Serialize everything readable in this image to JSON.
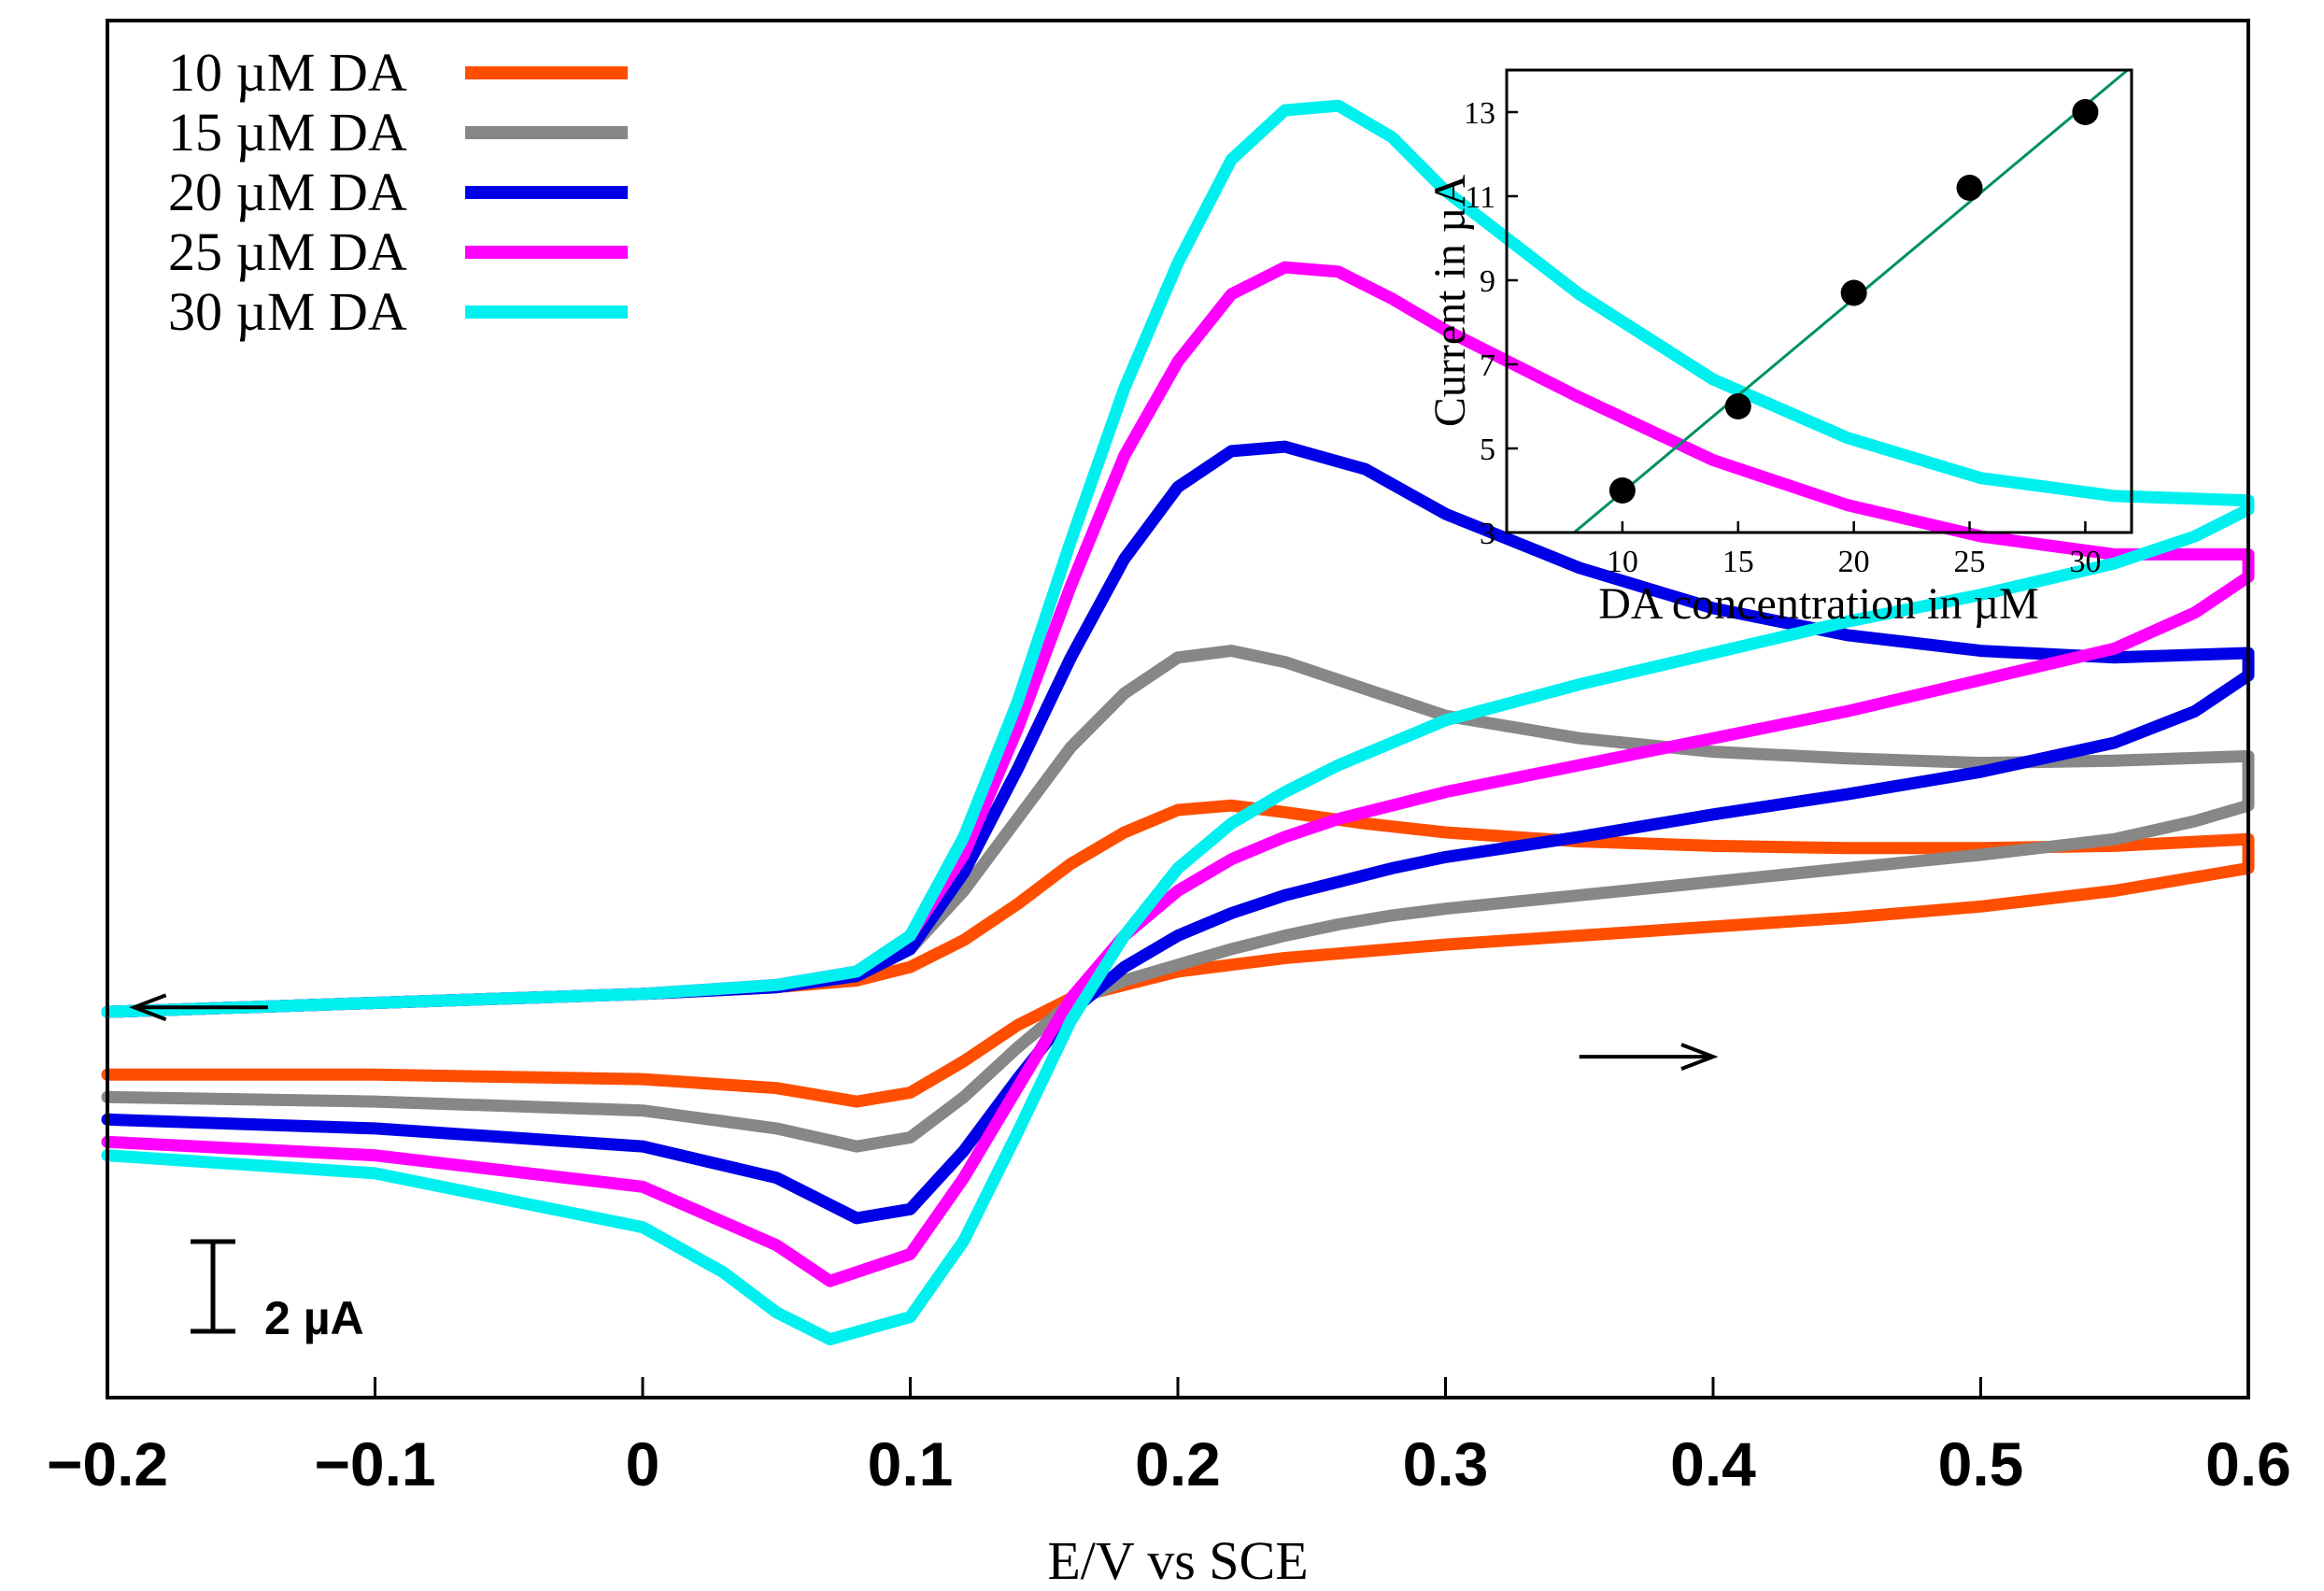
{
  "chart_data": [
    {
      "type": "line",
      "xlabel": "E/V vs SCE",
      "ylabel": "",
      "xlim": [
        -0.2,
        0.6
      ],
      "x_ticks": [
        "−0.2",
        "−0.1",
        "0",
        "0.1",
        "0.2",
        "0.3",
        "0.4",
        "0.5",
        "0.6"
      ],
      "x_tick_values": [
        -0.2,
        -0.1,
        0,
        0.1,
        0.2,
        0.3,
        0.4,
        0.5,
        0.6
      ],
      "ylim": [
        -8.7,
        22.0
      ],
      "y_unit": "µA (relative)",
      "scale_bar_label": "2 µA",
      "scale_bar_value": 2,
      "arrows": [
        {
          "direction": "left",
          "x_start": -0.14,
          "x_end": -0.19,
          "y": 0.0
        },
        {
          "direction": "right",
          "x_start": 0.35,
          "x_end": 0.4,
          "y": -1.1
        }
      ],
      "series": [
        {
          "name": "10 µM DA",
          "color": "#ff4e00",
          "anodic": {
            "x": [
              -0.2,
              -0.1,
              0.0,
              0.05,
              0.08,
              0.1,
              0.12,
              0.14,
              0.16,
              0.18,
              0.2,
              0.22,
              0.24,
              0.26,
              0.28,
              0.3,
              0.35,
              0.4,
              0.45,
              0.5,
              0.55,
              0.58,
              0.6
            ],
            "y": [
              -1.5,
              -1.5,
              -1.6,
              -1.8,
              -2.1,
              -1.9,
              -1.2,
              -0.4,
              0.2,
              0.5,
              0.8,
              0.95,
              1.1,
              1.2,
              1.3,
              1.4,
              1.6,
              1.8,
              2.0,
              2.25,
              2.6,
              2.9,
              3.1
            ]
          },
          "cathodic": {
            "x": [
              0.6,
              0.55,
              0.5,
              0.45,
              0.4,
              0.35,
              0.3,
              0.27,
              0.24,
              0.22,
              0.2,
              0.18,
              0.16,
              0.14,
              0.12,
              0.1,
              0.08,
              0.05,
              0.0,
              -0.1,
              -0.2
            ],
            "y": [
              3.75,
              3.6,
              3.55,
              3.55,
              3.6,
              3.7,
              3.9,
              4.1,
              4.35,
              4.5,
              4.4,
              3.9,
              3.2,
              2.3,
              1.5,
              0.9,
              0.6,
              0.45,
              0.3,
              0.1,
              -0.1
            ]
          }
        },
        {
          "name": "15 µM DA",
          "color": "#878787",
          "anodic": {
            "x": [
              -0.2,
              -0.1,
              0.0,
              0.05,
              0.08,
              0.1,
              0.12,
              0.14,
              0.16,
              0.18,
              0.2,
              0.22,
              0.24,
              0.26,
              0.28,
              0.3,
              0.35,
              0.4,
              0.45,
              0.5,
              0.55,
              0.58,
              0.6
            ],
            "y": [
              -2.0,
              -2.1,
              -2.3,
              -2.7,
              -3.1,
              -2.9,
              -2.0,
              -0.9,
              0.1,
              0.6,
              0.95,
              1.3,
              1.6,
              1.85,
              2.05,
              2.2,
              2.5,
              2.8,
              3.1,
              3.4,
              3.75,
              4.15,
              4.5
            ]
          },
          "cathodic": {
            "x": [
              0.6,
              0.55,
              0.5,
              0.45,
              0.4,
              0.35,
              0.3,
              0.27,
              0.24,
              0.22,
              0.2,
              0.18,
              0.16,
              0.14,
              0.12,
              0.1,
              0.08,
              0.05,
              0.0,
              -0.1,
              -0.2
            ],
            "y": [
              5.6,
              5.5,
              5.45,
              5.55,
              5.7,
              6.0,
              6.5,
              7.1,
              7.7,
              7.95,
              7.8,
              7.0,
              5.8,
              4.2,
              2.6,
              1.3,
              0.7,
              0.45,
              0.3,
              0.1,
              -0.1
            ]
          }
        },
        {
          "name": "20 µM DA",
          "color": "#0000e6",
          "anodic": {
            "x": [
              -0.2,
              -0.1,
              0.0,
              0.05,
              0.08,
              0.1,
              0.12,
              0.14,
              0.16,
              0.18,
              0.2,
              0.22,
              0.24,
              0.26,
              0.28,
              0.3,
              0.35,
              0.4,
              0.45,
              0.5,
              0.55,
              0.58,
              0.6
            ],
            "y": [
              -2.5,
              -2.7,
              -3.1,
              -3.8,
              -4.7,
              -4.5,
              -3.2,
              -1.6,
              -0.1,
              0.9,
              1.6,
              2.1,
              2.5,
              2.8,
              3.1,
              3.35,
              3.8,
              4.3,
              4.75,
              5.25,
              5.9,
              6.6,
              7.4
            ]
          },
          "cathodic": {
            "x": [
              0.6,
              0.55,
              0.5,
              0.45,
              0.4,
              0.35,
              0.3,
              0.27,
              0.24,
              0.22,
              0.2,
              0.18,
              0.16,
              0.14,
              0.12,
              0.1,
              0.08,
              0.05,
              0.0,
              -0.1,
              -0.2
            ],
            "y": [
              7.9,
              7.8,
              7.95,
              8.3,
              8.9,
              9.8,
              11.0,
              12.0,
              12.5,
              12.4,
              11.6,
              10.0,
              7.8,
              5.3,
              3.0,
              1.3,
              0.7,
              0.45,
              0.3,
              0.1,
              -0.1
            ]
          }
        },
        {
          "name": "25 µM DA",
          "color": "#ff00ff",
          "anodic": {
            "x": [
              -0.2,
              -0.1,
              0.0,
              0.05,
              0.07,
              0.1,
              0.12,
              0.14,
              0.16,
              0.18,
              0.2,
              0.22,
              0.24,
              0.26,
              0.28,
              0.3,
              0.35,
              0.4,
              0.45,
              0.5,
              0.55,
              0.58,
              0.6
            ],
            "y": [
              -3.0,
              -3.3,
              -4.0,
              -5.3,
              -6.1,
              -5.5,
              -3.8,
              -1.8,
              0.2,
              1.6,
              2.6,
              3.3,
              3.8,
              4.2,
              4.5,
              4.8,
              5.4,
              6.0,
              6.6,
              7.3,
              8.0,
              8.8,
              9.6
            ]
          },
          "cathodic": {
            "x": [
              0.6,
              0.55,
              0.5,
              0.45,
              0.4,
              0.35,
              0.3,
              0.28,
              0.26,
              0.24,
              0.22,
              0.2,
              0.18,
              0.16,
              0.14,
              0.12,
              0.1,
              0.08,
              0.05,
              0.0,
              -0.1,
              -0.2
            ],
            "y": [
              10.1,
              10.1,
              10.5,
              11.2,
              12.2,
              13.6,
              15.1,
              15.8,
              16.4,
              16.5,
              15.9,
              14.4,
              12.3,
              9.4,
              6.2,
              3.4,
              1.6,
              0.8,
              0.5,
              0.3,
              0.1,
              -0.1
            ]
          }
        },
        {
          "name": "30 µM DA",
          "color": "#00f0f0",
          "anodic": {
            "x": [
              -0.2,
              -0.1,
              0.0,
              0.03,
              0.05,
              0.07,
              0.1,
              0.12,
              0.14,
              0.16,
              0.18,
              0.2,
              0.22,
              0.24,
              0.26,
              0.28,
              0.3,
              0.35,
              0.4,
              0.45,
              0.5,
              0.55,
              0.58,
              0.6
            ],
            "y": [
              -3.3,
              -3.7,
              -4.9,
              -5.9,
              -6.8,
              -7.4,
              -6.9,
              -5.2,
              -2.8,
              -0.3,
              1.6,
              3.1,
              4.1,
              4.8,
              5.4,
              5.9,
              6.4,
              7.2,
              7.9,
              8.6,
              9.2,
              9.9,
              10.5,
              11.1
            ]
          },
          "cathodic": {
            "x": [
              0.6,
              0.55,
              0.5,
              0.45,
              0.4,
              0.35,
              0.3,
              0.28,
              0.26,
              0.24,
              0.22,
              0.2,
              0.18,
              0.16,
              0.14,
              0.12,
              0.1,
              0.08,
              0.05,
              0.0,
              -0.1,
              -0.2
            ],
            "y": [
              11.3,
              11.4,
              11.8,
              12.7,
              14.0,
              15.9,
              18.2,
              19.4,
              20.1,
              20.0,
              18.9,
              16.6,
              13.8,
              10.4,
              6.8,
              3.8,
              1.6,
              0.8,
              0.5,
              0.3,
              0.1,
              -0.1
            ]
          }
        }
      ]
    },
    {
      "type": "scatter",
      "xlabel": "DA concentration in µM",
      "ylabel": "Current in µA",
      "xlim": [
        5,
        32
      ],
      "ylim": [
        3,
        14
      ],
      "x_ticks": [
        "10",
        "15",
        "20",
        "25",
        "30"
      ],
      "x_tick_values": [
        10,
        15,
        20,
        25,
        30
      ],
      "y_ticks": [
        "3",
        "5",
        "7",
        "9",
        "11",
        "13"
      ],
      "y_tick_values": [
        3,
        5,
        7,
        9,
        11,
        13
      ],
      "points": {
        "x": [
          10,
          15,
          20,
          25,
          30
        ],
        "y": [
          4.0,
          6.0,
          8.7,
          11.2,
          13.0
        ]
      },
      "fit_line": {
        "slope": 0.46,
        "intercept": -0.64,
        "color": "#009060"
      },
      "marker_color": "#000000"
    }
  ]
}
